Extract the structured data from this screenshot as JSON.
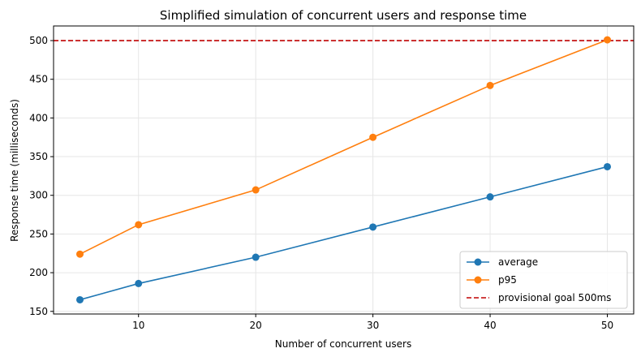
{
  "chart_data": {
    "type": "line",
    "title": "Simplified simulation of concurrent users and response time",
    "xlabel": "Number of concurrent users",
    "ylabel": "Response time (milliseconds)",
    "x": [
      5,
      10,
      20,
      30,
      40,
      50
    ],
    "xlim": [
      2.75,
      52.25
    ],
    "ylim": [
      146.6,
      518.9
    ],
    "xticks": [
      10,
      20,
      30,
      40,
      50
    ],
    "yticks": [
      150,
      200,
      250,
      300,
      350,
      400,
      450,
      500
    ],
    "grid": true,
    "legend_position": "lower-right",
    "series": [
      {
        "name": "average",
        "values": [
          165,
          186,
          220,
          259,
          298,
          337
        ],
        "color": "#1f77b4",
        "marker": "circle"
      },
      {
        "name": "p95",
        "values": [
          224,
          262,
          307,
          375,
          442,
          501
        ],
        "color": "#ff7f0e",
        "marker": "circle"
      }
    ],
    "reference_lines": [
      {
        "name": "provisional goal 500ms",
        "y": 500,
        "color": "#c00000",
        "style": "dashed"
      }
    ]
  }
}
